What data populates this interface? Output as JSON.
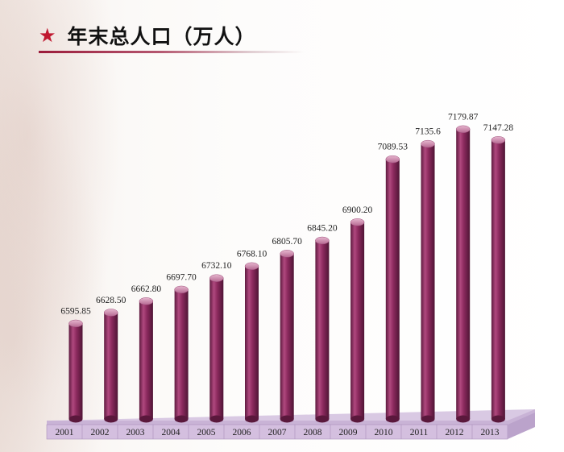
{
  "header": {
    "title": "年末总人口（万人）",
    "icon": "star-icon"
  },
  "colors": {
    "accent": "#c0182f",
    "bar_main": "#8c2a5e",
    "bar_dark": "#5e1a3f",
    "bar_light": "#c06f97",
    "base": "#d9c9e3"
  },
  "chart_data": {
    "type": "bar",
    "title": "年末总人口（万人）",
    "xlabel": "",
    "ylabel": "",
    "categories": [
      "2001",
      "2002",
      "2003",
      "2004",
      "2005",
      "2006",
      "2007",
      "2008",
      "2009",
      "2010",
      "2011",
      "2012",
      "2013"
    ],
    "values": [
      6595.85,
      6628.5,
      6662.8,
      6697.7,
      6732.1,
      6768.1,
      6805.7,
      6845.2,
      6900.2,
      7089.53,
      7135.6,
      7179.87,
      7147.28
    ],
    "value_labels": [
      "6595.85",
      "6628.50",
      "6662.80",
      "6697.70",
      "6732.10",
      "6768.10",
      "6805.70",
      "6845.20",
      "6900.20",
      "7089.53",
      "7135.6",
      "7179.87",
      "7147.28"
    ],
    "grid": false,
    "legend": "none"
  }
}
